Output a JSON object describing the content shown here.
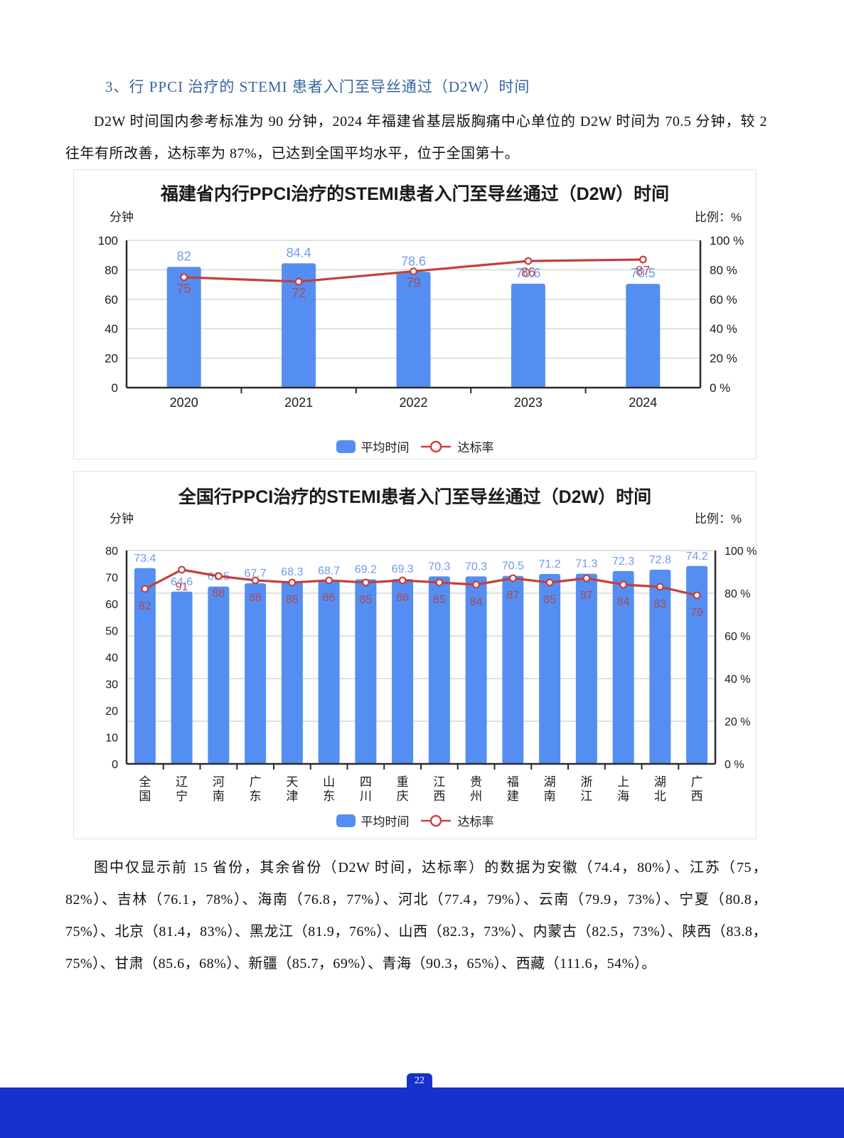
{
  "page": {
    "heading": "3、行 PPCI 治疗的 STEMI 患者入门至导丝通过（D2W）时间",
    "para1": "D2W 时间国内参考标准为 90 分钟，2024 年福建省基层版胸痛中心单位的 D2W 时间为 70.5 分钟，较 2 往年有所改善，达标率为 87%，已达到全国平均水平，位于全国第十。",
    "para2": "图中仅显示前 15 省份，其余省份（D2W 时间，达标率）的数据为安徽（74.4，80%）、江苏（75，82%）、吉林（76.1，78%）、海南（76.8，77%）、河北（77.4，79%）、云南（79.9，73%）、宁夏（80.8，75%）、北京（81.4，83%）、黑龙江（81.9，76%）、山西（82.3，73%）、内蒙古（82.5，73%）、陕西（83.8，75%）、甘肃（85.6，68%）、新疆（85.7，69%）、青海（90.3，65%）、西藏（111.6，54%）。",
    "page_number": "22"
  },
  "colors": {
    "bar_blue": "#548ef2",
    "bar_label_blue": "#7199ee",
    "line_red": "#c4403c",
    "rate_label_red": "#aa4a55",
    "grid": "#d8d8d8",
    "axis": "#2b2b2b",
    "tick_text": "#1a1a1a",
    "heading_blue": "#3565a3",
    "footer_blue": "#1831cd"
  },
  "chart_data": [
    {
      "type": "bar",
      "title": "福建省内行PPCI治疗的STEMI患者入门至导丝通过（D2W）时间",
      "left_axis_label": "分钟",
      "right_axis_label": "比例：%",
      "categories": [
        "2020",
        "2021",
        "2022",
        "2023",
        "2024"
      ],
      "series": [
        {
          "name": "平均时间",
          "type": "bar",
          "axis": "left",
          "values": [
            82,
            84.4,
            78.6,
            70.6,
            70.5
          ]
        },
        {
          "name": "达标率",
          "type": "line",
          "axis": "right",
          "values": [
            75,
            72,
            79,
            86,
            87
          ]
        }
      ],
      "left_ylim": [
        0,
        100
      ],
      "right_ylim": [
        0,
        100
      ],
      "left_ticks": [
        0,
        20,
        40,
        60,
        80,
        100
      ],
      "right_ticks": [
        "0 %",
        "20 %",
        "40 %",
        "60 %",
        "80 %",
        "100 %"
      ],
      "grid": true,
      "legend_position": "bottom"
    },
    {
      "type": "bar",
      "title": "全国行PPCI治疗的STEMI患者入门至导丝通过（D2W）时间",
      "left_axis_label": "分钟",
      "right_axis_label": "比例：%",
      "categories": [
        "全国",
        "辽宁",
        "河南",
        "广东",
        "天津",
        "山东",
        "四川",
        "重庆",
        "江西",
        "贵州",
        "福建",
        "湖南",
        "浙江",
        "上海",
        "湖北",
        "广西"
      ],
      "series": [
        {
          "name": "平均时间",
          "type": "bar",
          "axis": "left",
          "values": [
            73.4,
            64.6,
            66.5,
            67.7,
            68.3,
            68.7,
            69.2,
            69.3,
            70.3,
            70.3,
            70.5,
            71.2,
            71.3,
            72.3,
            72.8,
            74.2
          ]
        },
        {
          "name": "达标率",
          "type": "line",
          "axis": "right",
          "values": [
            82,
            91,
            88,
            86,
            85,
            86,
            85,
            86,
            85,
            84,
            87,
            85,
            87,
            84,
            83,
            79
          ]
        }
      ],
      "left_ylim": [
        0,
        80
      ],
      "right_ylim": [
        0,
        100
      ],
      "left_ticks": [
        0,
        10,
        20,
        30,
        40,
        50,
        60,
        70,
        80
      ],
      "right_ticks": [
        "0 %",
        "20 %",
        "40 %",
        "60 %",
        "80 %",
        "100 %"
      ],
      "grid": true,
      "legend_position": "bottom"
    }
  ]
}
